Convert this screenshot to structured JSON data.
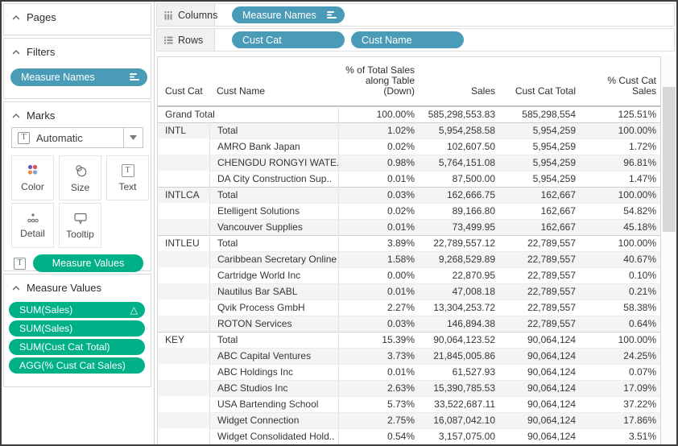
{
  "colors": {
    "pill_blue": "#4A9BB7",
    "pill_green": "#00B188",
    "row_band": "#f4f4f4"
  },
  "sidebar": {
    "sections": {
      "pages": "Pages",
      "filters": "Filters",
      "marks": "Marks",
      "measure_values": "Measure Values"
    },
    "filters_pills": [
      {
        "label": "Measure Names",
        "sorted": true
      }
    ],
    "marks": {
      "type_selector": "Automatic",
      "buttons": [
        "Color",
        "Size",
        "Text",
        "Detail",
        "Tooltip"
      ],
      "pills": [
        {
          "label": "Measure Values"
        }
      ]
    },
    "measure_values_pills": [
      {
        "label": "SUM(Sales)",
        "delta": true
      },
      {
        "label": "SUM(Sales)"
      },
      {
        "label": "SUM(Cust Cat Total)"
      },
      {
        "label": "AGG(% Cust Cat Sales)"
      }
    ]
  },
  "shelves": {
    "columns": {
      "label": "Columns",
      "pills": [
        {
          "label": "Measure Names",
          "sorted": true
        }
      ]
    },
    "rows": {
      "label": "Rows",
      "pills": [
        {
          "label": "Cust Cat"
        },
        {
          "label": "Cust Name"
        }
      ]
    }
  },
  "table": {
    "headers": {
      "cust_cat": "Cust Cat",
      "cust_name": "Cust Name",
      "pct_total": "% of Total Sales\nalong Table\n(Down)",
      "sales": "Sales",
      "cust_cat_total": "Cust Cat Total",
      "pct_cust_cat": "% Cust Cat\nSales"
    },
    "rows": [
      {
        "cat": "Grand Total",
        "name": null,
        "pct_total": "100.00%",
        "sales": "585,298,553.83",
        "cat_total": "585,298,554",
        "pct_cat_sales": "125.51%",
        "group_start": true
      },
      {
        "cat": "INTL",
        "name": "Total",
        "pct_total": "1.02%",
        "sales": "5,954,258.58",
        "cat_total": "5,954,259",
        "pct_cat_sales": "100.00%",
        "group_start": true
      },
      {
        "cat": "",
        "name": "AMRO Bank Japan",
        "pct_total": "0.02%",
        "sales": "102,607.50",
        "cat_total": "5,954,259",
        "pct_cat_sales": "1.72%"
      },
      {
        "cat": "",
        "name": "CHENGDU RONGYI WATE..",
        "pct_total": "0.98%",
        "sales": "5,764,151.08",
        "cat_total": "5,954,259",
        "pct_cat_sales": "96.81%"
      },
      {
        "cat": "",
        "name": "DA City Construction Sup..",
        "pct_total": "0.01%",
        "sales": "87,500.00",
        "cat_total": "5,954,259",
        "pct_cat_sales": "1.47%"
      },
      {
        "cat": "INTLCA",
        "name": "Total",
        "pct_total": "0.03%",
        "sales": "162,666.75",
        "cat_total": "162,667",
        "pct_cat_sales": "100.00%",
        "group_start": true
      },
      {
        "cat": "",
        "name": "Etelligent Solutions",
        "pct_total": "0.02%",
        "sales": "89,166.80",
        "cat_total": "162,667",
        "pct_cat_sales": "54.82%"
      },
      {
        "cat": "",
        "name": "Vancouver Supplies",
        "pct_total": "0.01%",
        "sales": "73,499.95",
        "cat_total": "162,667",
        "pct_cat_sales": "45.18%"
      },
      {
        "cat": "INTLEU",
        "name": "Total",
        "pct_total": "3.89%",
        "sales": "22,789,557.12",
        "cat_total": "22,789,557",
        "pct_cat_sales": "100.00%",
        "group_start": true
      },
      {
        "cat": "",
        "name": "Caribbean Secretary Online",
        "pct_total": "1.58%",
        "sales": "9,268,529.89",
        "cat_total": "22,789,557",
        "pct_cat_sales": "40.67%"
      },
      {
        "cat": "",
        "name": "Cartridge World Inc",
        "pct_total": "0.00%",
        "sales": "22,870.95",
        "cat_total": "22,789,557",
        "pct_cat_sales": "0.10%"
      },
      {
        "cat": "",
        "name": "Nautilus Bar SABL",
        "pct_total": "0.01%",
        "sales": "47,008.18",
        "cat_total": "22,789,557",
        "pct_cat_sales": "0.21%"
      },
      {
        "cat": "",
        "name": "Qvik Process GmbH",
        "pct_total": "2.27%",
        "sales": "13,304,253.72",
        "cat_total": "22,789,557",
        "pct_cat_sales": "58.38%"
      },
      {
        "cat": "",
        "name": "ROTON Services",
        "pct_total": "0.03%",
        "sales": "146,894.38",
        "cat_total": "22,789,557",
        "pct_cat_sales": "0.64%"
      },
      {
        "cat": "KEY",
        "name": "Total",
        "pct_total": "15.39%",
        "sales": "90,064,123.52",
        "cat_total": "90,064,124",
        "pct_cat_sales": "100.00%",
        "group_start": true
      },
      {
        "cat": "",
        "name": "ABC Capital Ventures",
        "pct_total": "3.73%",
        "sales": "21,845,005.86",
        "cat_total": "90,064,124",
        "pct_cat_sales": "24.25%"
      },
      {
        "cat": "",
        "name": "ABC Holdings Inc",
        "pct_total": "0.01%",
        "sales": "61,527.93",
        "cat_total": "90,064,124",
        "pct_cat_sales": "0.07%"
      },
      {
        "cat": "",
        "name": "ABC Studios Inc",
        "pct_total": "2.63%",
        "sales": "15,390,785.53",
        "cat_total": "90,064,124",
        "pct_cat_sales": "17.09%"
      },
      {
        "cat": "",
        "name": "USA Bartending School",
        "pct_total": "5.73%",
        "sales": "33,522,687.11",
        "cat_total": "90,064,124",
        "pct_cat_sales": "37.22%"
      },
      {
        "cat": "",
        "name": "Widget Connection",
        "pct_total": "2.75%",
        "sales": "16,087,042.10",
        "cat_total": "90,064,124",
        "pct_cat_sales": "17.86%"
      },
      {
        "cat": "",
        "name": "Widget Consolidated Hold..",
        "pct_total": "0.54%",
        "sales": "3,157,075.00",
        "cat_total": "90,064,124",
        "pct_cat_sales": "3.51%"
      }
    ]
  }
}
